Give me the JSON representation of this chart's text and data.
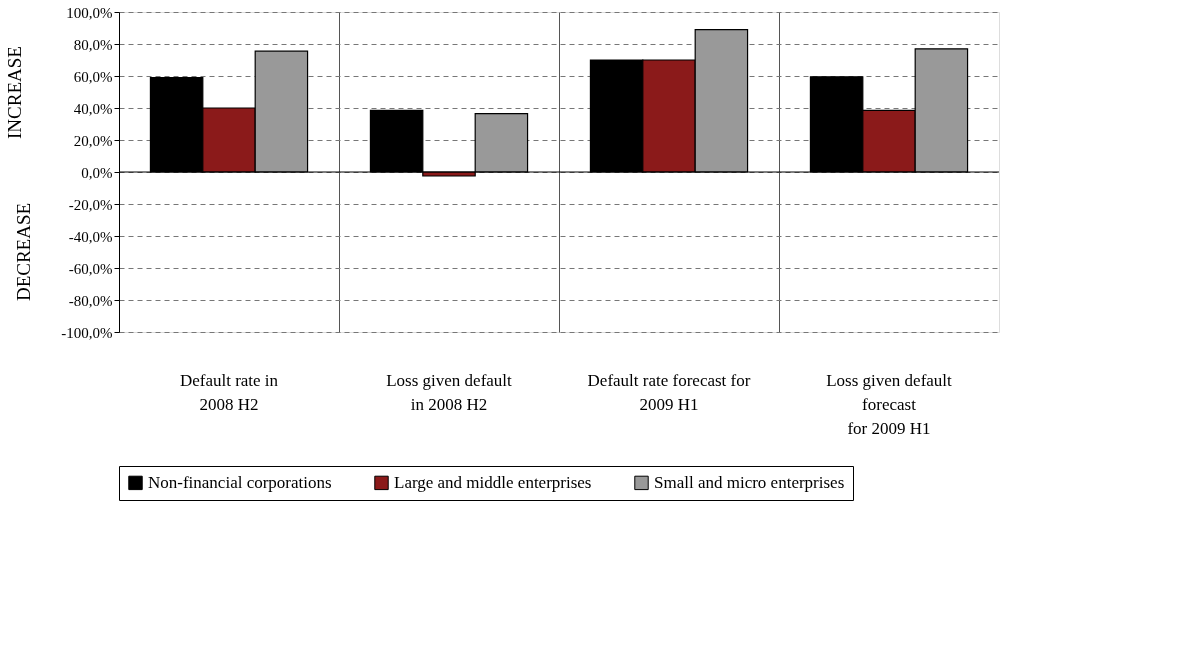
{
  "chart_data": {
    "type": "bar",
    "ylabel": "INCREASE",
    "annotations": [
      "DECREASE"
    ],
    "categories": [
      "Default rate in\n2008 H2",
      "Loss given default\nin 2008 H2",
      "Default rate forecast for\n2009 H1",
      "Loss given default\nforecast\nfor 2009 H1"
    ],
    "series": [
      {
        "name": "Non-financial corporations",
        "color": "#000000",
        "values": [
          59,
          38.5,
          70,
          59.5
        ]
      },
      {
        "name": "Large and middle enterprises",
        "color": "#8b1a1a",
        "values": [
          40,
          -2.5,
          70,
          38.5
        ]
      },
      {
        "name": "Small and micro enterprises",
        "color": "#999999",
        "values": [
          75.5,
          36.5,
          89,
          77
        ]
      }
    ],
    "ylim": [
      -100,
      100
    ],
    "yticks": [
      {
        "value": -100,
        "label": "-100,0%"
      },
      {
        "value": -80,
        "label": "-80,0%"
      },
      {
        "value": -60,
        "label": "-60,0%"
      },
      {
        "value": -40,
        "label": "-40,0%"
      },
      {
        "value": -20,
        "label": "-20,0%"
      },
      {
        "value": 0,
        "label": "0,0%"
      },
      {
        "value": 20,
        "label": "20,0%"
      },
      {
        "value": 40,
        "label": "40,0%"
      },
      {
        "value": 60,
        "label": "60,0%"
      },
      {
        "value": 80,
        "label": "80,0%"
      },
      {
        "value": 100,
        "label": "100,0%"
      }
    ],
    "grid": true,
    "legend": "bottom"
  }
}
